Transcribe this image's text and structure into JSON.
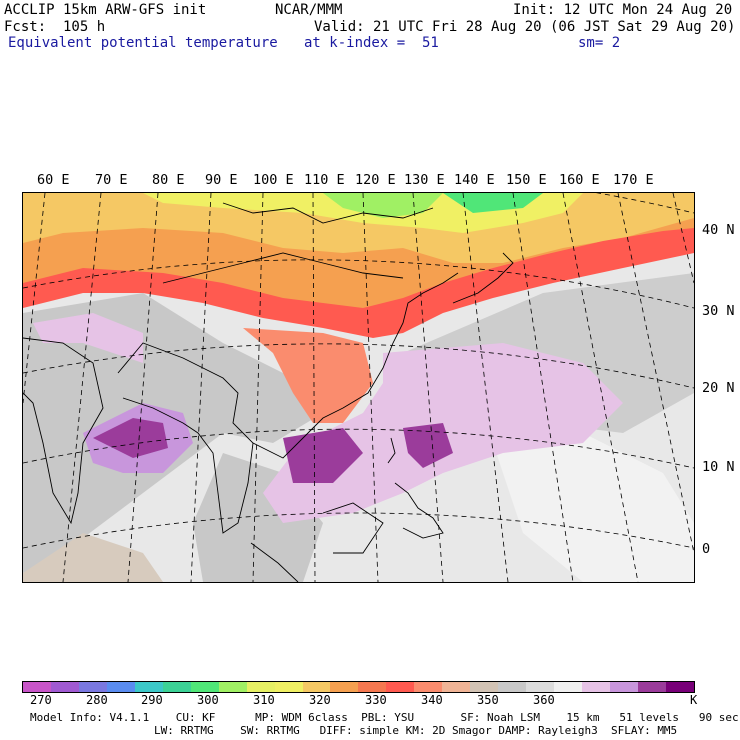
{
  "header": {
    "line1_left": "ACCLIP 15km ARW-GFS init",
    "line1_center": "NCAR/MMM",
    "line1_right": "Init: 12 UTC Mon 24 Aug 20",
    "line2_left": "Fcst:  105 h",
    "line2_right": "Valid: 21 UTC Fri 28 Aug 20 (06 JST Sat 29 Aug 20)",
    "line3_left": "Equivalent potential temperature",
    "line3_center": "at k-index =  51",
    "line3_right": "sm= 2"
  },
  "map": {
    "longitude_labels": [
      "60 E",
      "70 E",
      "80 E",
      "90 E",
      "100 E",
      "110 E",
      "120 E",
      "130 E",
      "140 E",
      "150 E",
      "160 E",
      "170 E"
    ],
    "latitude_labels": [
      "40 N",
      "30 N",
      "20 N",
      "10 N",
      "0"
    ]
  },
  "colorbar": {
    "colors": [
      "#c855c8",
      "#a05ad2",
      "#7a78e0",
      "#5a8cf0",
      "#3cc8c8",
      "#3cd296",
      "#50e678",
      "#a0f064",
      "#e6f064",
      "#f0f064",
      "#f5c864",
      "#f5a050",
      "#f57850",
      "#ff5a50",
      "#fa8c6e",
      "#f0b496",
      "#d2c3b4",
      "#c8c8c8",
      "#dcdcdc",
      "#f0f0f0",
      "#e6c3e6",
      "#c896dc",
      "#9b3c9b",
      "#780078"
    ],
    "labels": [
      "270",
      "280",
      "290",
      "300",
      "310",
      "320",
      "330",
      "340",
      "350",
      "360",
      "K"
    ]
  },
  "footer": {
    "line1": "Model Info: V4.1.1    CU: KF      MP: WDM 6class  PBL: YSU       SF: Noah LSM    15 km   51 levels   90 sec",
    "line2": "LW: RRTMG    SW: RRTMG   DIFF: simple KM: 2D Smagor DAMP: Rayleigh3  SFLAY: MM5"
  }
}
